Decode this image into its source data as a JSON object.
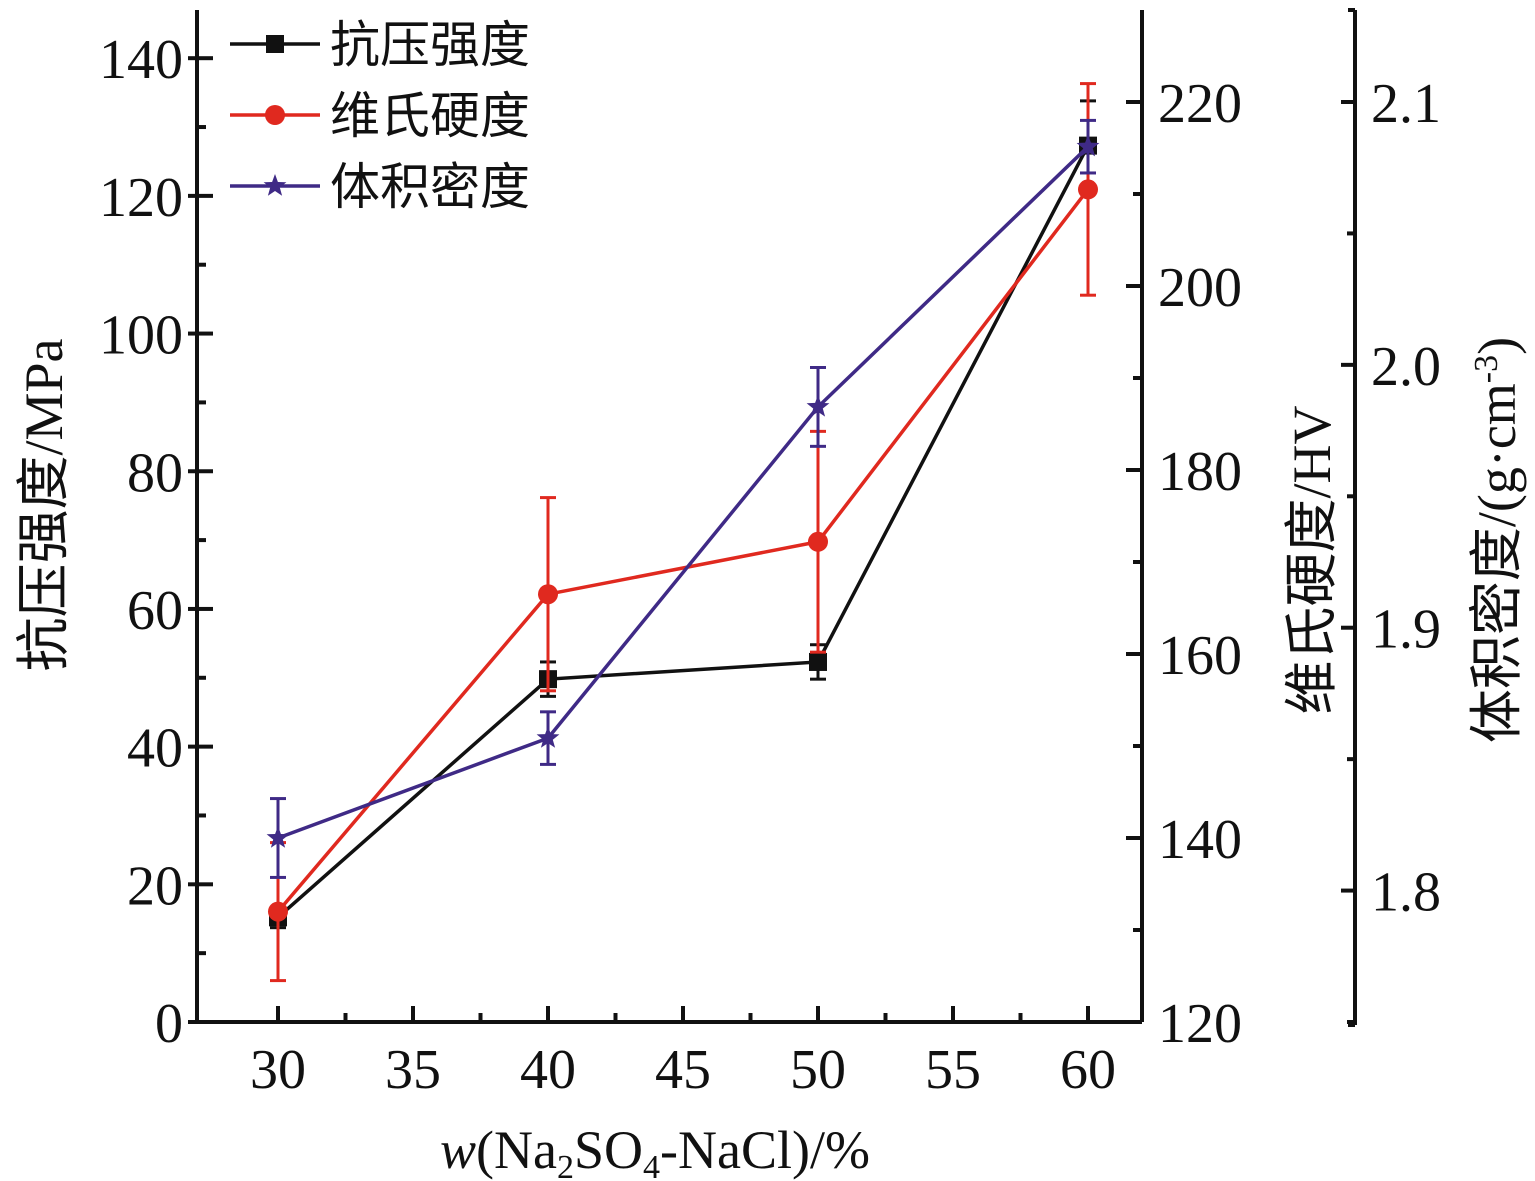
{
  "chart_data": {
    "type": "line",
    "x": [
      30,
      40,
      50,
      60
    ],
    "xlabel": {
      "italic": "w",
      "pre": "(Na",
      "sub1": "2",
      "mid": "SO",
      "sub2": "4",
      "post": "-NaCl)/%"
    },
    "xlim": [
      27,
      62
    ],
    "x_ticks": [
      "30",
      "35",
      "40",
      "45",
      "50",
      "55",
      "60"
    ],
    "axes": [
      {
        "id": "left",
        "label": "抗压强度/MPa",
        "lim": [
          0,
          147
        ],
        "ticks": [
          "0",
          "20",
          "40",
          "60",
          "80",
          "100",
          "120",
          "140"
        ]
      },
      {
        "id": "right1",
        "label": "维氏硬度/HV",
        "lim": [
          120,
          230
        ],
        "ticks": [
          "120",
          "140",
          "160",
          "180",
          "200",
          "220"
        ]
      },
      {
        "id": "right2",
        "label_main": "体积密度/(g·cm",
        "label_sup": "-3",
        "label_end": ")",
        "lim": [
          1.75,
          2.135
        ],
        "ticks": [
          "1.8",
          "1.9",
          "2.0",
          "2.1"
        ]
      }
    ],
    "series": [
      {
        "name": "抗压强度",
        "axis": "left",
        "color": "#111111",
        "marker": "square",
        "values": [
          15.2,
          49.8,
          52.3,
          127.3
        ],
        "errors": [
          1.5,
          2.5,
          2.5,
          6.5
        ]
      },
      {
        "name": "维氏硬度",
        "axis": "right1",
        "color": "#e0291f",
        "marker": "circle",
        "values": [
          132.0,
          166.5,
          172.2,
          210.5
        ],
        "errors": [
          7.5,
          10.5,
          12.0,
          11.5
        ]
      },
      {
        "name": "体积密度",
        "axis": "right2",
        "color": "#3f2a86",
        "marker": "star",
        "values": [
          1.82,
          1.858,
          1.984,
          2.083
        ],
        "errors": [
          0.015,
          0.01,
          0.015,
          0.01
        ]
      }
    ],
    "legend": "top-left",
    "grid": false
  }
}
